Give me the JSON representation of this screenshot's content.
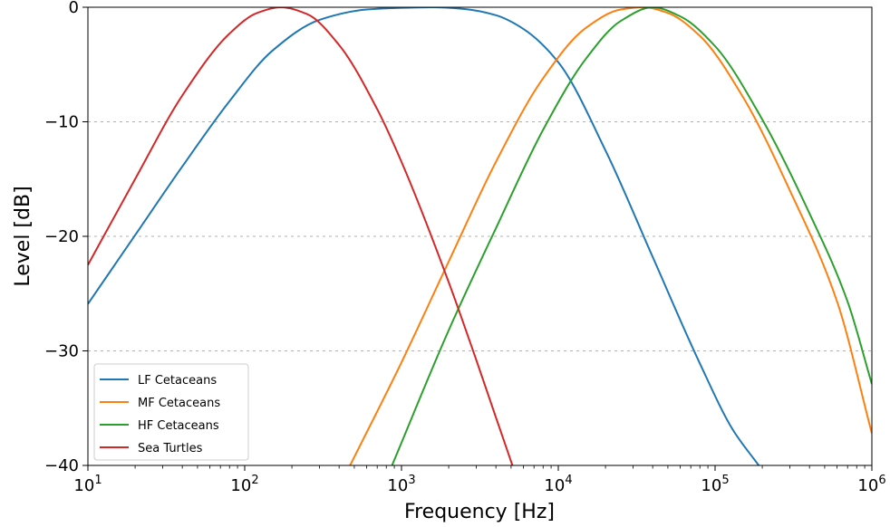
{
  "chart_data": {
    "type": "line",
    "xlabel": "Frequency [Hz]",
    "ylabel": "Level [dB]",
    "xscale": "log",
    "xlim": [
      10,
      1000000
    ],
    "ylim": [
      -40,
      0
    ],
    "grid": "y dotted",
    "legend_position": "bottom-left",
    "x_ticks": [
      {
        "value": 10,
        "base": "10",
        "exp": "1"
      },
      {
        "value": 100,
        "base": "10",
        "exp": "2"
      },
      {
        "value": 1000,
        "base": "10",
        "exp": "3"
      },
      {
        "value": 10000,
        "base": "10",
        "exp": "4"
      },
      {
        "value": 100000,
        "base": "10",
        "exp": "5"
      },
      {
        "value": 1000000,
        "base": "10",
        "exp": "6"
      }
    ],
    "y_ticks": [
      {
        "value": 0,
        "label": "0"
      },
      {
        "value": -10,
        "label": "−10"
      },
      {
        "value": -20,
        "label": "−20"
      },
      {
        "value": -30,
        "label": "−30"
      },
      {
        "value": -40,
        "label": "−40"
      }
    ],
    "series": [
      {
        "name": "LF Cetaceans",
        "color": "#1f77b4",
        "x": [
          10,
          20,
          40,
          80,
          150,
          300,
          600,
          1000,
          1600,
          2500,
          4000,
          6000,
          10000,
          20000,
          40000,
          80000,
          130000,
          190000
        ],
        "y": [
          -25.9,
          -19.9,
          -13.9,
          -8.2,
          -3.8,
          -1.1,
          -0.2,
          -0.05,
          0,
          -0.15,
          -0.7,
          -1.9,
          -4.8,
          -12.5,
          -21.8,
          -31.1,
          -36.9,
          -40
        ]
      },
      {
        "name": "MF Cetaceans",
        "color": "#ff7f0e",
        "x": [
          470,
          1000,
          2000,
          4000,
          8000,
          15000,
          25000,
          35000,
          50000,
          80000,
          150000,
          300000,
          600000,
          1000000
        ],
        "y": [
          -40,
          -31.0,
          -22.2,
          -13.5,
          -6.2,
          -1.8,
          -0.2,
          0,
          -0.5,
          -2.5,
          -7.8,
          -16.0,
          -25.7,
          -37.2
        ]
      },
      {
        "name": "HF Cetaceans",
        "color": "#2ca02c",
        "x": [
          870,
          2000,
          4000,
          8000,
          15000,
          25000,
          40000,
          60000,
          100000,
          200000,
          400000,
          700000,
          1000000
        ],
        "y": [
          -40,
          -28.2,
          -19.3,
          -10.7,
          -4.5,
          -1.2,
          0,
          -0.8,
          -3.4,
          -9.8,
          -18.0,
          -25.7,
          -32.9
        ]
      },
      {
        "name": "Sea Turtles",
        "color": "#d62728",
        "x": [
          10,
          20,
          40,
          80,
          120,
          170,
          250,
          400,
          700,
          1000,
          2000,
          3000,
          4000,
          5100
        ],
        "y": [
          -22.5,
          -15.0,
          -7.7,
          -2.3,
          -0.5,
          0,
          -0.6,
          -3.3,
          -8.9,
          -13.5,
          -24.0,
          -30.8,
          -35.8,
          -40
        ]
      }
    ]
  }
}
